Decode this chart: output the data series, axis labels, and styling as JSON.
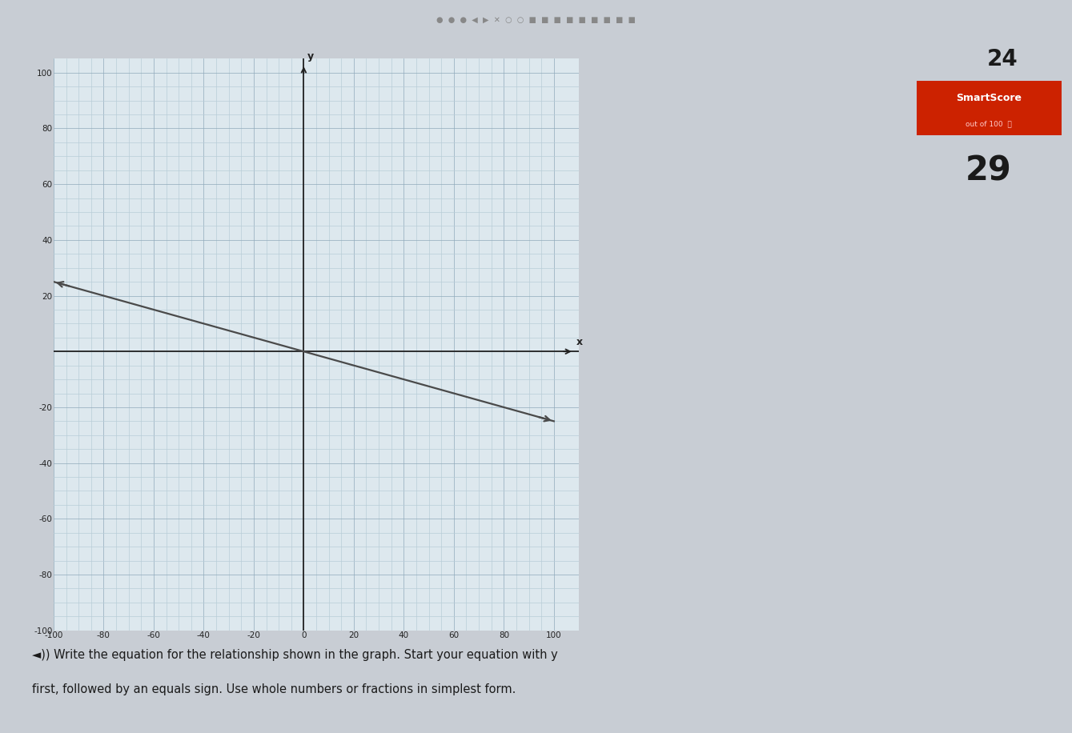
{
  "xlim": [
    -100,
    110
  ],
  "ylim": [
    -100,
    105
  ],
  "xticks": [
    -100,
    -80,
    -60,
    -40,
    -20,
    0,
    20,
    40,
    60,
    80,
    100
  ],
  "yticks": [
    -100,
    -80,
    -60,
    -40,
    -20,
    0,
    20,
    40,
    60,
    80,
    100
  ],
  "xlabel": "x",
  "ylabel": "y",
  "slope": -0.25,
  "intercept": 0,
  "line_x_start": -100,
  "line_x_end": 100,
  "line_color": "#4a4a4a",
  "line_width": 1.6,
  "minor_grid_color": "#b8cdd8",
  "major_grid_color": "#90aabb",
  "grid_linewidth": 0.5,
  "axis_color": "#222222",
  "fig_bg_color": "#c8cdd4",
  "plot_bg_color": "#dde8ee",
  "title": "24",
  "smartscore_label": "SmartScore",
  "smartscore_sub": "out of 100",
  "smartscore_value": "29",
  "smartscore_bg": "#cc2200",
  "question_text_1": "◄)) Write the equation for the relationship shown in the graph. Start your equation with y",
  "question_text_2": "first, followed by an equals sign. Use whole numbers or fractions in simplest form."
}
